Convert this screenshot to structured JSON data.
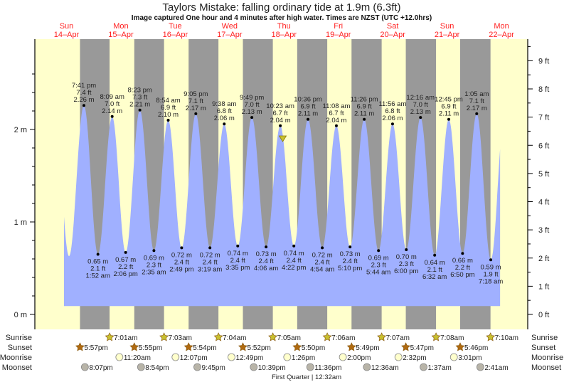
{
  "title": "Taylors Mistake: falling  ordinary tide at 1.9m (6.3ft)",
  "subtitle": "Image captured One hour and 4 minutes after high water. Times are NZST (UTC +12.0hrs)",
  "colors": {
    "day": "#ffffcc",
    "night": "#999999",
    "water": "#a0b0ff",
    "date": "#ff2020",
    "sunrise": "#c8c030",
    "sunset": "#b06a10",
    "moonrise": "#ffffcc",
    "moonset": "#b8b4a8",
    "marker": "#c8c030"
  },
  "row_labels": {
    "sunrise": "Sunrise",
    "sunset": "Sunset",
    "moonrise": "Moonrise",
    "moonset": "Moonset"
  },
  "moon_phase": "First Quarter | 12:32am",
  "chart_data": {
    "type": "area",
    "title": "Taylors Mistake: falling  ordinary tide at 1.9m (6.3ft)",
    "x_unit": "hours since Sun 14-Apr 00:00 NZST",
    "xlim": [
      0,
      215
    ],
    "ylim_m": [
      0,
      2.8
    ],
    "y_left_ticks": [
      {
        "v": 0,
        "label": "0 m"
      },
      {
        "v": 1,
        "label": "1 m"
      },
      {
        "v": 2,
        "label": "2 m"
      }
    ],
    "y_right_ticks": [
      {
        "v": 0,
        "label": "0 ft"
      },
      {
        "v": 1,
        "label": "1 ft"
      },
      {
        "v": 2,
        "label": "2 ft"
      },
      {
        "v": 3,
        "label": "3 ft"
      },
      {
        "v": 4,
        "label": "4 ft"
      },
      {
        "v": 5,
        "label": "5 ft"
      },
      {
        "v": 6,
        "label": "6 ft"
      },
      {
        "v": 7,
        "label": "7 ft"
      },
      {
        "v": 8,
        "label": "8 ft"
      },
      {
        "v": 9,
        "label": "9 ft"
      }
    ],
    "days": [
      {
        "day": "Sun",
        "date": "14–Apr",
        "h": 12
      },
      {
        "day": "Mon",
        "date": "15–Apr",
        "h": 36
      },
      {
        "day": "Tue",
        "date": "16–Apr",
        "h": 60
      },
      {
        "day": "Wed",
        "date": "17–Apr",
        "h": 84
      },
      {
        "day": "Thu",
        "date": "18–Apr",
        "h": 108
      },
      {
        "day": "Fri",
        "date": "19–Apr",
        "h": 132
      },
      {
        "day": "Sat",
        "date": "20–Apr",
        "h": 156
      },
      {
        "day": "Sun",
        "date": "21–Apr",
        "h": 180
      },
      {
        "day": "Mon",
        "date": "22–Apr",
        "h": 204
      }
    ],
    "highs": [
      {
        "h": 19.68,
        "time": "7:41 pm",
        "ft": "7.4 ft",
        "m": 2.26,
        "m_label": "2.26 m"
      },
      {
        "h": 32.15,
        "time": "8:09 am",
        "ft": "7.0 ft",
        "m": 2.14,
        "m_label": "2.14 m"
      },
      {
        "h": 44.38,
        "time": "8:23 pm",
        "ft": "7.3 ft",
        "m": 2.21,
        "m_label": "2.21 m"
      },
      {
        "h": 56.9,
        "time": "8:54 am",
        "ft": "6.9 ft",
        "m": 2.1,
        "m_label": "2.10 m"
      },
      {
        "h": 69.08,
        "time": "9:05 pm",
        "ft": "7.1 ft",
        "m": 2.17,
        "m_label": "2.17 m"
      },
      {
        "h": 81.63,
        "time": "9:38 am",
        "ft": "6.8 ft",
        "m": 2.06,
        "m_label": "2.06 m"
      },
      {
        "h": 93.82,
        "time": "9:49 pm",
        "ft": "7.0 ft",
        "m": 2.13,
        "m_label": "2.13 m"
      },
      {
        "h": 106.38,
        "time": "10:23 am",
        "ft": "6.7 ft",
        "m": 2.04,
        "m_label": "2.04 m"
      },
      {
        "h": 118.6,
        "time": "10:36 pm",
        "ft": "6.9 ft",
        "m": 2.11,
        "m_label": "2.11 m"
      },
      {
        "h": 131.13,
        "time": "11:08 am",
        "ft": "6.7 ft",
        "m": 2.04,
        "m_label": "2.04 m"
      },
      {
        "h": 143.43,
        "time": "11:26 pm",
        "ft": "6.9 ft",
        "m": 2.11,
        "m_label": "2.11 m"
      },
      {
        "h": 155.93,
        "time": "11:56 am",
        "ft": "6.8 ft",
        "m": 2.06,
        "m_label": "2.06 m"
      },
      {
        "h": 168.27,
        "time": "12:16 am",
        "ft": "7.0 ft",
        "m": 2.13,
        "m_label": "2.13 m"
      },
      {
        "h": 180.75,
        "time": "12:45 pm",
        "ft": "6.9 ft",
        "m": 2.11,
        "m_label": "2.11 m"
      },
      {
        "h": 193.08,
        "time": "1:05 am",
        "ft": "7.1 ft",
        "m": 2.17,
        "m_label": "2.17 m"
      }
    ],
    "lows": [
      {
        "h": 25.87,
        "time": "1:52 am",
        "ft": "2.1 ft",
        "m": 0.65,
        "m_label": "0.65 m"
      },
      {
        "h": 38.1,
        "time": "2:06 pm",
        "ft": "2.2 ft",
        "m": 0.67,
        "m_label": "0.67 m"
      },
      {
        "h": 50.58,
        "time": "2:35 am",
        "ft": "2.3 ft",
        "m": 0.69,
        "m_label": "0.69 m"
      },
      {
        "h": 62.82,
        "time": "2:49 pm",
        "ft": "2.4 ft",
        "m": 0.72,
        "m_label": "0.72 m"
      },
      {
        "h": 75.32,
        "time": "3:19 am",
        "ft": "2.4 ft",
        "m": 0.72,
        "m_label": "0.72 m"
      },
      {
        "h": 87.58,
        "time": "3:35 pm",
        "ft": "2.4 ft",
        "m": 0.74,
        "m_label": "0.74 m"
      },
      {
        "h": 100.1,
        "time": "4:06 am",
        "ft": "2.4 ft",
        "m": 0.73,
        "m_label": "0.73 m"
      },
      {
        "h": 112.37,
        "time": "4:22 pm",
        "ft": "2.4 ft",
        "m": 0.74,
        "m_label": "0.74 m"
      },
      {
        "h": 124.9,
        "time": "4:54 am",
        "ft": "2.4 ft",
        "m": 0.72,
        "m_label": "0.72 m"
      },
      {
        "h": 137.17,
        "time": "5:10 pm",
        "ft": "2.4 ft",
        "m": 0.73,
        "m_label": "0.73 m"
      },
      {
        "h": 149.73,
        "time": "5:44 am",
        "ft": "2.3 ft",
        "m": 0.69,
        "m_label": "0.69 m"
      },
      {
        "h": 162.0,
        "time": "6:00 pm",
        "ft": "2.3 ft",
        "m": 0.7,
        "m_label": "0.70 m"
      },
      {
        "h": 174.53,
        "time": "6:32 am",
        "ft": "2.1 ft",
        "m": 0.64,
        "m_label": "0.64 m"
      },
      {
        "h": 186.83,
        "time": "6:50 pm",
        "ft": "2.2 ft",
        "m": 0.66,
        "m_label": "0.66 m"
      },
      {
        "h": 199.3,
        "time": "7:18 am",
        "ft": "1.9 ft",
        "m": 0.59,
        "m_label": "0.59 m"
      }
    ],
    "curve_start": {
      "h": 10.9,
      "m": 1.12
    },
    "unlabeled_low": {
      "h": 13.1,
      "m": 0.63
    },
    "curve_end": {
      "h": 203.4,
      "m": 1.6
    },
    "current": {
      "h": 107.45,
      "m": 1.9
    },
    "sunrise": [
      {
        "h": 31.02,
        "label": "7:01am"
      },
      {
        "h": 55.05,
        "label": "7:03am"
      },
      {
        "h": 79.07,
        "label": "7:04am"
      },
      {
        "h": 103.08,
        "label": "7:05am"
      },
      {
        "h": 127.1,
        "label": "7:06am"
      },
      {
        "h": 151.12,
        "label": "7:07am"
      },
      {
        "h": 175.13,
        "label": "7:08am"
      },
      {
        "h": 199.17,
        "label": "7:10am"
      }
    ],
    "sunset": [
      {
        "h": 17.95,
        "label": "5:57pm"
      },
      {
        "h": 41.92,
        "label": "5:55pm"
      },
      {
        "h": 65.9,
        "label": "5:54pm"
      },
      {
        "h": 89.87,
        "label": "5:52pm"
      },
      {
        "h": 113.83,
        "label": "5:50pm"
      },
      {
        "h": 137.82,
        "label": "5:49pm"
      },
      {
        "h": 161.78,
        "label": "5:47pm"
      },
      {
        "h": 185.77,
        "label": "5:46pm"
      }
    ],
    "moonrise": [
      {
        "h": 35.33,
        "label": "11:20am"
      },
      {
        "h": 60.12,
        "label": "12:07pm"
      },
      {
        "h": 84.82,
        "label": "12:49pm"
      },
      {
        "h": 109.43,
        "label": "1:26pm"
      },
      {
        "h": 134.0,
        "label": "2:00pm"
      },
      {
        "h": 158.53,
        "label": "2:32pm"
      },
      {
        "h": 183.02,
        "label": "3:01pm"
      }
    ],
    "moonset": [
      {
        "h": 20.12,
        "label": "8:07pm"
      },
      {
        "h": 44.9,
        "label": "8:54pm"
      },
      {
        "h": 69.75,
        "label": "9:45pm"
      },
      {
        "h": 94.65,
        "label": "10:39pm"
      },
      {
        "h": 119.6,
        "label": "11:36pm"
      },
      {
        "h": 144.6,
        "label": "12:36am"
      },
      {
        "h": 169.62,
        "label": "1:37am"
      },
      {
        "h": 194.68,
        "label": "2:41am"
      }
    ]
  }
}
